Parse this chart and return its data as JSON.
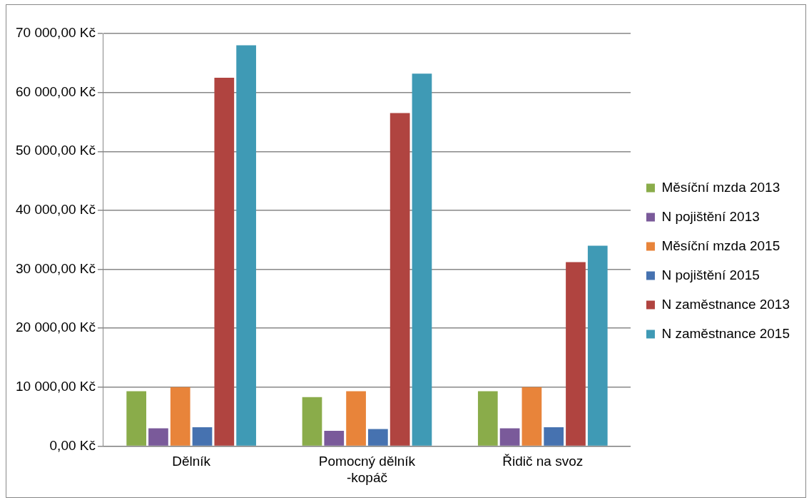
{
  "chart_data": {
    "type": "bar",
    "categories": [
      "Dělník",
      "Pomocný dělník -kopáč",
      "Řidič na svoz"
    ],
    "series": [
      {
        "name": "Měsíční mzda 2013",
        "color": "#8aac4a",
        "values": [
          9300,
          8300,
          9300
        ]
      },
      {
        "name": "N pojištění 2013",
        "color": "#7a5a9a",
        "values": [
          3000,
          2600,
          3000
        ]
      },
      {
        "name": "Měsíční mzda 2015",
        "color": "#e8843a",
        "values": [
          10000,
          9300,
          10000
        ]
      },
      {
        "name": "N pojištění 2015",
        "color": "#4672b0",
        "values": [
          3200,
          2900,
          3200
        ]
      },
      {
        "name": "N zaměstnance 2013",
        "color": "#b04440",
        "values": [
          62500,
          56500,
          31200
        ]
      },
      {
        "name": "N zaměstnance 2015",
        "color": "#3f9ab5",
        "values": [
          68000,
          63200,
          34000
        ]
      }
    ],
    "ylim": [
      0,
      70000
    ],
    "yticks": [
      {
        "value": 0,
        "label": "0,00 Kč"
      },
      {
        "value": 10000,
        "label": "10 000,00 Kč"
      },
      {
        "value": 20000,
        "label": "20 000,00 Kč"
      },
      {
        "value": 30000,
        "label": "30 000,00 Kč"
      },
      {
        "value": 40000,
        "label": "40 000,00 Kč"
      },
      {
        "value": 50000,
        "label": "50 000,00 Kč"
      },
      {
        "value": 60000,
        "label": "60 000,00 Kč"
      },
      {
        "value": 70000,
        "label": "70 000,00 Kč"
      }
    ],
    "grid": "y",
    "legend": "right"
  }
}
